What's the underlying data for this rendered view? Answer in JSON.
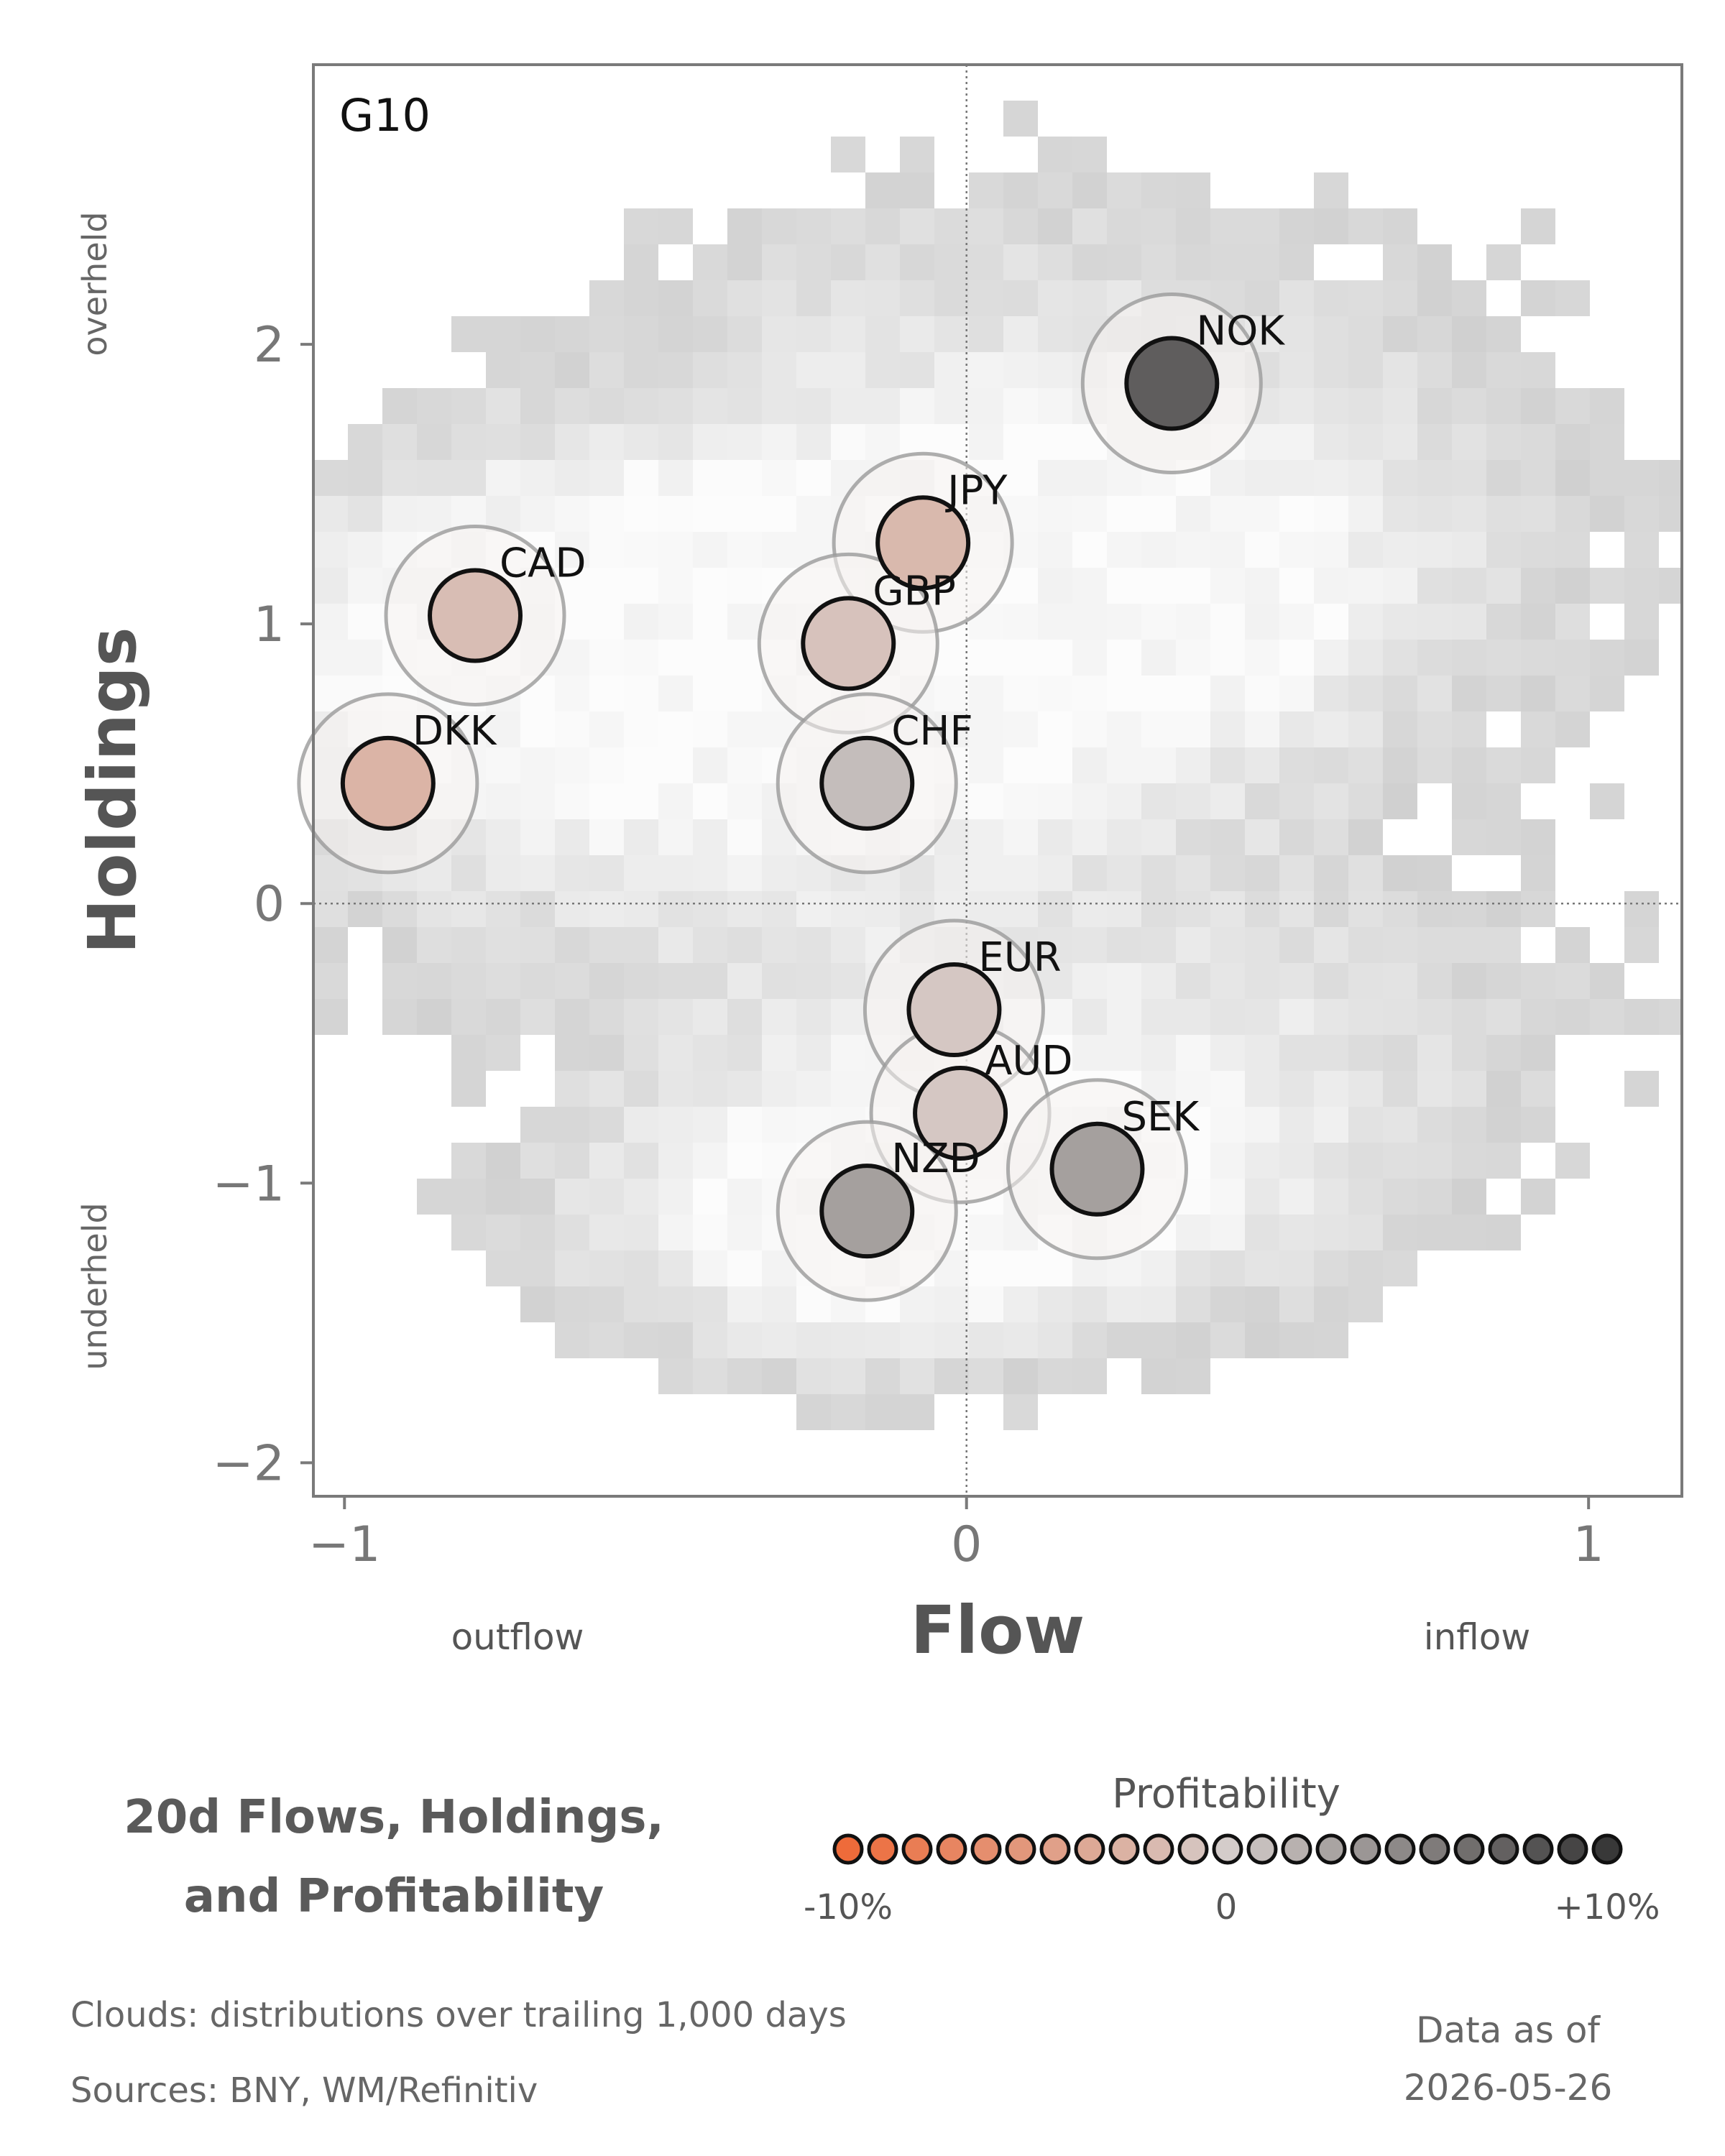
{
  "chart_data": {
    "type": "scatter",
    "panel_label": "G10",
    "xlabel": "Flow",
    "ylabel": "Holdings",
    "x_low_label": "outflow",
    "x_high_label": "inflow",
    "y_high_label": "overheld",
    "y_low_label": "underheld",
    "xlim": [
      -1.05,
      1.15
    ],
    "ylim": [
      -2.12,
      3.0
    ],
    "xticks": [
      -1,
      0,
      1
    ],
    "xtick_labels": [
      "−1",
      "0",
      "1"
    ],
    "yticks": [
      -2,
      -1,
      0,
      1,
      2
    ],
    "ytick_labels": [
      "−2",
      "−1",
      "0",
      "1",
      "2"
    ],
    "reference_lines": {
      "x": 0,
      "y": 0
    },
    "background": "density-clouds",
    "points": [
      {
        "label": "NOK",
        "flow": 0.33,
        "holdings": 1.86,
        "profitability": 0.075
      },
      {
        "label": "JPY",
        "flow": -0.07,
        "holdings": 1.29,
        "profitability": -0.02
      },
      {
        "label": "CAD",
        "flow": -0.79,
        "holdings": 1.03,
        "profitability": -0.015
      },
      {
        "label": "GBP",
        "flow": -0.19,
        "holdings": 0.93,
        "profitability": -0.01
      },
      {
        "label": "DKK",
        "flow": -0.93,
        "holdings": 0.43,
        "profitability": -0.025
      },
      {
        "label": "CHF",
        "flow": -0.16,
        "holdings": 0.43,
        "profitability": 0.01
      },
      {
        "label": "EUR",
        "flow": -0.02,
        "holdings": -0.38,
        "profitability": -0.005
      },
      {
        "label": "AUD",
        "flow": -0.01,
        "holdings": -0.75,
        "profitability": -0.005
      },
      {
        "label": "SEK",
        "flow": 0.21,
        "holdings": -0.95,
        "profitability": 0.03
      },
      {
        "label": "NZD",
        "flow": -0.16,
        "holdings": -1.1,
        "profitability": 0.03
      }
    ],
    "legend": {
      "title": "Profitability",
      "min_label": "-10%",
      "mid_label": "0",
      "max_label": "+10%",
      "steps": 23,
      "low_color": "#ee6b3a",
      "mid_color": "#d4ccca",
      "high_color": "#383838"
    }
  },
  "title_line1": "20d Flows, Holdings,",
  "title_line2": "and Profitability",
  "notes_line1": "Clouds:  distributions over trailing 1,000 days",
  "notes_line2": "Sources:  BNY, WM/Refinitiv",
  "date_label": "Data as of",
  "date_value": "2026-05-26"
}
